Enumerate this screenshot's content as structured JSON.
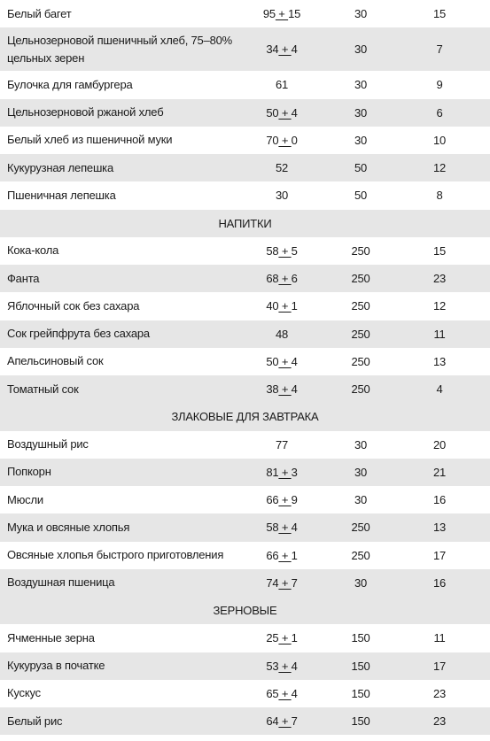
{
  "rows": [
    {
      "kind": "item",
      "name": "Белый багет",
      "gi": "95",
      "pm": "15",
      "portion": "30",
      "gl": "15"
    },
    {
      "kind": "item",
      "name": "Цельнозерновой пшеничный хлеб, 75–80% цельных зерен",
      "gi": "34",
      "pm": "4",
      "portion": "30",
      "gl": "7",
      "tall": true
    },
    {
      "kind": "item",
      "name": "Булочка для гамбургера",
      "gi": "61",
      "portion": "30",
      "gl": "9"
    },
    {
      "kind": "item",
      "name": "Цельнозерновой ржаной хлеб",
      "gi": "50",
      "pm": "4",
      "portion": "30",
      "gl": "6"
    },
    {
      "kind": "item",
      "name": "Белый хлеб из пшеничной муки",
      "gi": "70",
      "pm": "0",
      "portion": "30",
      "gl": "10"
    },
    {
      "kind": "item",
      "name": "Кукурузная лепешка",
      "gi": "52",
      "portion": "50",
      "gl": "12"
    },
    {
      "kind": "item",
      "name": "Пшеничная лепешка",
      "gi": "30",
      "portion": "50",
      "gl": "8"
    },
    {
      "kind": "section",
      "title": "НАПИТКИ"
    },
    {
      "kind": "item",
      "name": "Кока-кола",
      "gi": "58",
      "pm": "5",
      "portion": "250",
      "gl": "15"
    },
    {
      "kind": "item",
      "name": "Фанта",
      "gi": "68",
      "pm": "6",
      "portion": "250",
      "gl": "23"
    },
    {
      "kind": "item",
      "name": "Яблочный сок без сахара",
      "gi": "40",
      "pm": "1",
      "portion": "250",
      "gl": "12"
    },
    {
      "kind": "item",
      "name": "Сок грейпфрута без сахара",
      "gi": "48",
      "portion": "250",
      "gl": "11"
    },
    {
      "kind": "item",
      "name": "Апельсиновый сок",
      "gi": "50",
      "pm": "4",
      "portion": "250",
      "gl": "13"
    },
    {
      "kind": "item",
      "name": "Томатный сок",
      "gi": "38",
      "pm": "4",
      "portion": "250",
      "gl": "4"
    },
    {
      "kind": "section",
      "title": "ЗЛАКОВЫЕ ДЛЯ ЗАВТРАКА"
    },
    {
      "kind": "item",
      "name": "Воздушный рис",
      "gi": "77",
      "portion": "30",
      "gl": "20"
    },
    {
      "kind": "item",
      "name": "Попкорн",
      "gi": "81",
      "pm": "3",
      "portion": "30",
      "gl": "21"
    },
    {
      "kind": "item",
      "name": "Мюсли",
      "gi": "66",
      "pm": "9",
      "portion": "30",
      "gl": "16"
    },
    {
      "kind": "item",
      "name": "Мука и овсяные хлопья",
      "gi": "58",
      "pm": "4",
      "portion": "250",
      "gl": "13"
    },
    {
      "kind": "item",
      "name": "Овсяные хлопья быстрого приготовления",
      "gi": "66",
      "pm": "1",
      "portion": "250",
      "gl": "17"
    },
    {
      "kind": "item",
      "name": "Воздушная пшеница",
      "gi": "74",
      "pm": "7",
      "portion": "30",
      "gl": "16"
    },
    {
      "kind": "section",
      "title": "ЗЕРНОВЫЕ"
    },
    {
      "kind": "item",
      "name": "Ячменные зерна",
      "gi": "25",
      "pm": "1",
      "portion": "150",
      "gl": "11"
    },
    {
      "kind": "item",
      "name": "Кукуруза в початке",
      "gi": "53",
      "pm": "4",
      "portion": "150",
      "gl": "17"
    },
    {
      "kind": "item",
      "name": "Кускус",
      "gi": "65",
      "pm": "4",
      "portion": "150",
      "gl": "23"
    },
    {
      "kind": "item",
      "name": "Белый рис",
      "gi": "64",
      "pm": "7",
      "portion": "150",
      "gl": "23"
    }
  ]
}
